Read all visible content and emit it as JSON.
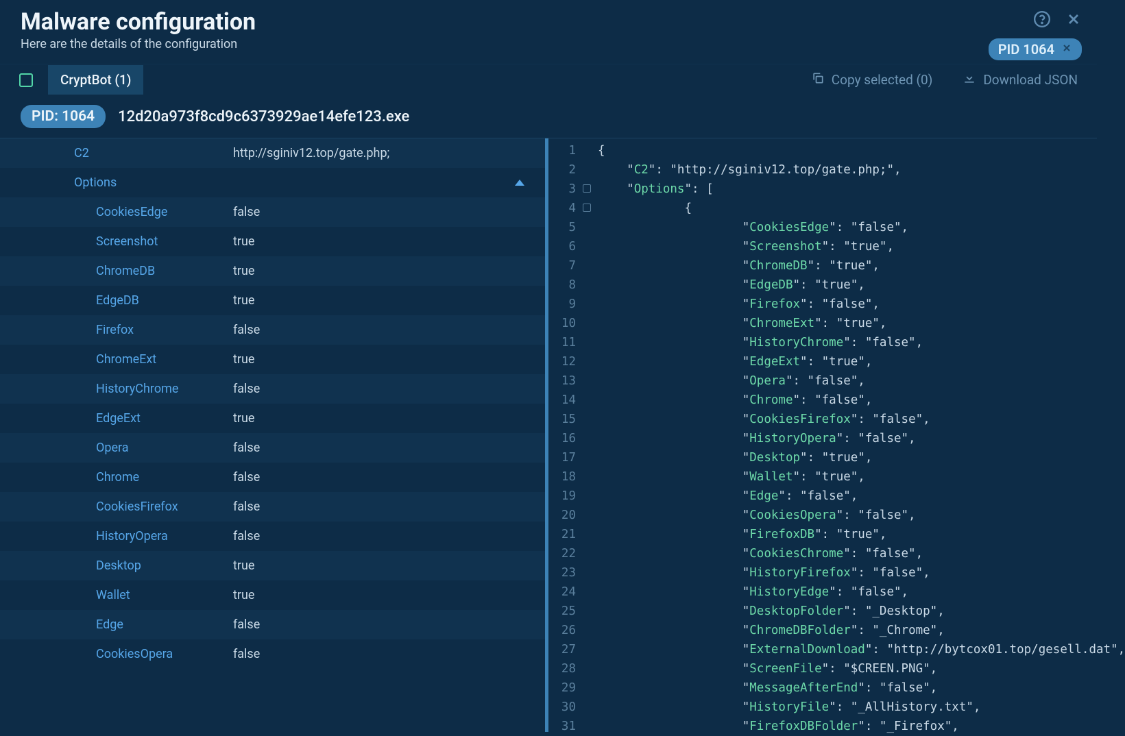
{
  "colors": {
    "background": "#0d2c47",
    "row_alt": "#10324f",
    "accent": "#3d83b7",
    "key_text": "#56a6e8",
    "value_text": "#c9d9e6",
    "json_key": "#6dd9a9",
    "line_num": "#5a7f9c",
    "checkbox_border": "#53d6a8"
  },
  "header": {
    "title": "Malware configuration",
    "subtitle": "Here are the details of the configuration",
    "pid_badge": "PID 1064"
  },
  "toolbar": {
    "tab_label": "CryptBot (1)",
    "copy_label": "Copy selected (0)",
    "download_label": "Download JSON"
  },
  "pid_row": {
    "chip": "PID: 1064",
    "exe": "12d20a973f8cd9c6373929ae14efe123.exe"
  },
  "left_table": {
    "c2_label": "C2",
    "c2_value": "http://sginiv12.top/gate.php;",
    "options_label": "Options",
    "options": [
      {
        "key": "CookiesEdge",
        "val": "false"
      },
      {
        "key": "Screenshot",
        "val": "true"
      },
      {
        "key": "ChromeDB",
        "val": "true"
      },
      {
        "key": "EdgeDB",
        "val": "true"
      },
      {
        "key": "Firefox",
        "val": "false"
      },
      {
        "key": "ChromeExt",
        "val": "true"
      },
      {
        "key": "HistoryChrome",
        "val": "false"
      },
      {
        "key": "EdgeExt",
        "val": "true"
      },
      {
        "key": "Opera",
        "val": "false"
      },
      {
        "key": "Chrome",
        "val": "false"
      },
      {
        "key": "CookiesFirefox",
        "val": "false"
      },
      {
        "key": "HistoryOpera",
        "val": "false"
      },
      {
        "key": "Desktop",
        "val": "true"
      },
      {
        "key": "Wallet",
        "val": "true"
      },
      {
        "key": "Edge",
        "val": "false"
      },
      {
        "key": "CookiesOpera",
        "val": "false"
      }
    ]
  },
  "json_lines": [
    {
      "n": 1,
      "indent": 0,
      "tokens": [
        [
          "punc",
          "{"
        ]
      ]
    },
    {
      "n": 2,
      "indent": 1,
      "tokens": [
        [
          "punc",
          "\""
        ],
        [
          "key",
          "C2"
        ],
        [
          "punc",
          "\": \"http://sginiv12.top/gate.php;\","
        ]
      ]
    },
    {
      "n": 3,
      "indent": 1,
      "fold": true,
      "tokens": [
        [
          "punc",
          "\""
        ],
        [
          "key",
          "Options"
        ],
        [
          "punc",
          "\": ["
        ]
      ]
    },
    {
      "n": 4,
      "indent": 3,
      "fold": true,
      "tokens": [
        [
          "punc",
          "{"
        ]
      ]
    },
    {
      "n": 5,
      "indent": 5,
      "tokens": [
        [
          "punc",
          "\""
        ],
        [
          "key",
          "CookiesEdge"
        ],
        [
          "punc",
          "\": \"false\","
        ]
      ]
    },
    {
      "n": 6,
      "indent": 5,
      "tokens": [
        [
          "punc",
          "\""
        ],
        [
          "key",
          "Screenshot"
        ],
        [
          "punc",
          "\": \"true\","
        ]
      ]
    },
    {
      "n": 7,
      "indent": 5,
      "tokens": [
        [
          "punc",
          "\""
        ],
        [
          "key",
          "ChromeDB"
        ],
        [
          "punc",
          "\": \"true\","
        ]
      ]
    },
    {
      "n": 8,
      "indent": 5,
      "tokens": [
        [
          "punc",
          "\""
        ],
        [
          "key",
          "EdgeDB"
        ],
        [
          "punc",
          "\": \"true\","
        ]
      ]
    },
    {
      "n": 9,
      "indent": 5,
      "tokens": [
        [
          "punc",
          "\""
        ],
        [
          "key",
          "Firefox"
        ],
        [
          "punc",
          "\": \"false\","
        ]
      ]
    },
    {
      "n": 10,
      "indent": 5,
      "tokens": [
        [
          "punc",
          "\""
        ],
        [
          "key",
          "ChromeExt"
        ],
        [
          "punc",
          "\": \"true\","
        ]
      ]
    },
    {
      "n": 11,
      "indent": 5,
      "tokens": [
        [
          "punc",
          "\""
        ],
        [
          "key",
          "HistoryChrome"
        ],
        [
          "punc",
          "\": \"false\","
        ]
      ]
    },
    {
      "n": 12,
      "indent": 5,
      "tokens": [
        [
          "punc",
          "\""
        ],
        [
          "key",
          "EdgeExt"
        ],
        [
          "punc",
          "\": \"true\","
        ]
      ]
    },
    {
      "n": 13,
      "indent": 5,
      "tokens": [
        [
          "punc",
          "\""
        ],
        [
          "key",
          "Opera"
        ],
        [
          "punc",
          "\": \"false\","
        ]
      ]
    },
    {
      "n": 14,
      "indent": 5,
      "tokens": [
        [
          "punc",
          "\""
        ],
        [
          "key",
          "Chrome"
        ],
        [
          "punc",
          "\": \"false\","
        ]
      ]
    },
    {
      "n": 15,
      "indent": 5,
      "tokens": [
        [
          "punc",
          "\""
        ],
        [
          "key",
          "CookiesFirefox"
        ],
        [
          "punc",
          "\": \"false\","
        ]
      ]
    },
    {
      "n": 16,
      "indent": 5,
      "tokens": [
        [
          "punc",
          "\""
        ],
        [
          "key",
          "HistoryOpera"
        ],
        [
          "punc",
          "\": \"false\","
        ]
      ]
    },
    {
      "n": 17,
      "indent": 5,
      "tokens": [
        [
          "punc",
          "\""
        ],
        [
          "key",
          "Desktop"
        ],
        [
          "punc",
          "\": \"true\","
        ]
      ]
    },
    {
      "n": 18,
      "indent": 5,
      "tokens": [
        [
          "punc",
          "\""
        ],
        [
          "key",
          "Wallet"
        ],
        [
          "punc",
          "\": \"true\","
        ]
      ]
    },
    {
      "n": 19,
      "indent": 5,
      "tokens": [
        [
          "punc",
          "\""
        ],
        [
          "key",
          "Edge"
        ],
        [
          "punc",
          "\": \"false\","
        ]
      ]
    },
    {
      "n": 20,
      "indent": 5,
      "tokens": [
        [
          "punc",
          "\""
        ],
        [
          "key",
          "CookiesOpera"
        ],
        [
          "punc",
          "\": \"false\","
        ]
      ]
    },
    {
      "n": 21,
      "indent": 5,
      "tokens": [
        [
          "punc",
          "\""
        ],
        [
          "key",
          "FirefoxDB"
        ],
        [
          "punc",
          "\": \"true\","
        ]
      ]
    },
    {
      "n": 22,
      "indent": 5,
      "tokens": [
        [
          "punc",
          "\""
        ],
        [
          "key",
          "CookiesChrome"
        ],
        [
          "punc",
          "\": \"false\","
        ]
      ]
    },
    {
      "n": 23,
      "indent": 5,
      "tokens": [
        [
          "punc",
          "\""
        ],
        [
          "key",
          "HistoryFirefox"
        ],
        [
          "punc",
          "\": \"false\","
        ]
      ]
    },
    {
      "n": 24,
      "indent": 5,
      "tokens": [
        [
          "punc",
          "\""
        ],
        [
          "key",
          "HistoryEdge"
        ],
        [
          "punc",
          "\": \"false\","
        ]
      ]
    },
    {
      "n": 25,
      "indent": 5,
      "tokens": [
        [
          "punc",
          "\""
        ],
        [
          "key",
          "DesktopFolder"
        ],
        [
          "punc",
          "\": \"_Desktop\","
        ]
      ]
    },
    {
      "n": 26,
      "indent": 5,
      "tokens": [
        [
          "punc",
          "\""
        ],
        [
          "key",
          "ChromeDBFolder"
        ],
        [
          "punc",
          "\": \"_Chrome\","
        ]
      ]
    },
    {
      "n": 27,
      "indent": 5,
      "tokens": [
        [
          "punc",
          "\""
        ],
        [
          "key",
          "ExternalDownload"
        ],
        [
          "punc",
          "\": \"http://bytcox01.top/gesell.dat\","
        ]
      ]
    },
    {
      "n": 28,
      "indent": 5,
      "tokens": [
        [
          "punc",
          "\""
        ],
        [
          "key",
          "ScreenFile"
        ],
        [
          "punc",
          "\": \"$CREEN.PNG\","
        ]
      ]
    },
    {
      "n": 29,
      "indent": 5,
      "tokens": [
        [
          "punc",
          "\""
        ],
        [
          "key",
          "MessageAfterEnd"
        ],
        [
          "punc",
          "\": \"false\","
        ]
      ]
    },
    {
      "n": 30,
      "indent": 5,
      "tokens": [
        [
          "punc",
          "\""
        ],
        [
          "key",
          "HistoryFile"
        ],
        [
          "punc",
          "\": \"_AllHistory.txt\","
        ]
      ]
    },
    {
      "n": 31,
      "indent": 5,
      "tokens": [
        [
          "punc",
          "\""
        ],
        [
          "key",
          "FirefoxDBFolder"
        ],
        [
          "punc",
          "\": \"_Firefox\","
        ]
      ]
    }
  ]
}
